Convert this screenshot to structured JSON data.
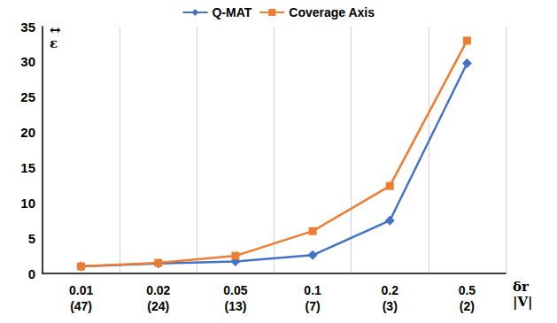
{
  "chart_data": {
    "type": "line",
    "xlabel": "δr\n|V|",
    "ylabel": "↔\nε",
    "categories": [
      "0.01\n(47)",
      "0.02\n(24)",
      "0.05\n(13)",
      "0.1\n(7)",
      "0.2\n(3)",
      "0.5\n(2)"
    ],
    "series": [
      {
        "name": "Q-MAT",
        "color": "#4472c4",
        "marker": "diamond",
        "values": [
          1.0,
          1.4,
          1.7,
          2.6,
          7.5,
          29.8
        ]
      },
      {
        "name": "Coverage Axis",
        "color": "#ed7d31",
        "marker": "square",
        "values": [
          1.0,
          1.5,
          2.5,
          6.0,
          12.4,
          33.0
        ]
      }
    ],
    "ylim": [
      0,
      35
    ],
    "yticks": [
      0,
      5,
      10,
      15,
      20,
      25,
      30,
      35
    ],
    "grid": true,
    "legend": "top"
  }
}
